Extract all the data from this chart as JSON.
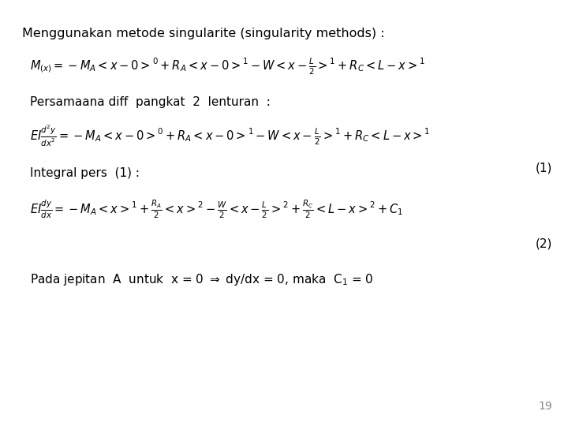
{
  "background_color": "#ffffff",
  "title_text": "Menggunakan metode singularite (singularity methods) :",
  "line1_label": "Persamaana diff  pangkat  2  lenturan  :",
  "integral_label": "Integral pers  (1) :",
  "page_number": "19",
  "label1_num": "(1)",
  "label2_num": "(2)",
  "font_size_title": 11.5,
  "font_size_label": 11.0,
  "font_size_eq": 10.5,
  "font_size_num": 11.0,
  "font_size_bottom": 11.0,
  "font_size_page": 10.0
}
